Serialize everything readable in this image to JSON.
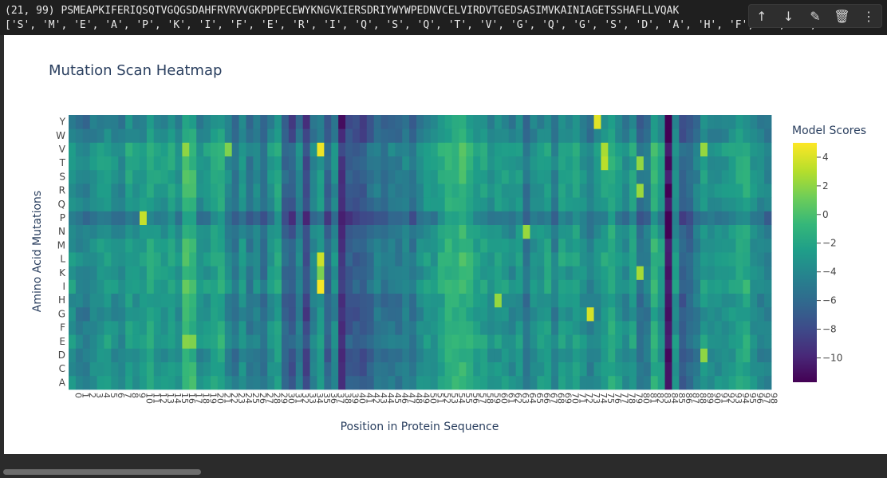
{
  "output_lines": {
    "line1": "(21, 99) PSMEAPKIFERIQSQTVGQGSDAHFRVRVVGKPDPECEWYKNGVKIERSDRIYWYWPEDNVCELVIRDVTGEDSASIMVKAINIAGETSSHAFLLVQAK",
    "line2": "['S', 'M', 'E', 'A', 'P', 'K', 'I', 'F', 'E', 'R', 'I', 'Q', 'S', 'Q', 'T', 'V', 'G', 'Q', 'G', 'S', 'D', 'A', 'H', 'F', 'R', 'V',"
  },
  "toolbar": {
    "buttons": [
      {
        "name": "move-up-icon",
        "glyph": "↑"
      },
      {
        "name": "move-down-icon",
        "glyph": "↓"
      },
      {
        "name": "magic-wand-icon",
        "glyph": "✎"
      },
      {
        "name": "delete-icon",
        "glyph": "🗑"
      },
      {
        "name": "more-options-icon",
        "glyph": "⋮"
      }
    ]
  },
  "chart_data": {
    "type": "heatmap",
    "title": "Mutation Scan Heatmap",
    "xlabel": "Position in Protein Sequence",
    "ylabel": "Amino Acid Mutations",
    "colorbar_title": "Model Scores",
    "colorscale": "viridis",
    "zmin": -11.7,
    "zmax": 5.0,
    "colorbar_ticks": [
      4,
      2,
      0,
      -2,
      -4,
      -6,
      -8,
      -10
    ],
    "y_categories": [
      "A",
      "C",
      "D",
      "E",
      "F",
      "G",
      "H",
      "I",
      "K",
      "L",
      "M",
      "N",
      "P",
      "Q",
      "R",
      "S",
      "T",
      "V",
      "W",
      "Y"
    ],
    "x_range": [
      0,
      98
    ],
    "x_ticks": [
      0,
      1,
      2,
      3,
      4,
      5,
      6,
      7,
      8,
      9,
      10,
      11,
      12,
      13,
      14,
      15,
      16,
      17,
      18,
      19,
      20,
      21,
      22,
      23,
      24,
      25,
      26,
      27,
      28,
      29,
      30,
      31,
      32,
      33,
      34,
      35,
      36,
      37,
      38,
      39,
      40,
      41,
      42,
      43,
      44,
      45,
      46,
      47,
      48,
      49,
      50,
      51,
      52,
      53,
      54,
      55,
      56,
      57,
      58,
      59,
      60,
      61,
      62,
      63,
      64,
      65,
      66,
      67,
      68,
      69,
      70,
      71,
      72,
      73,
      74,
      75,
      76,
      77,
      78,
      79,
      80,
      81,
      82,
      83,
      84,
      85,
      86,
      87,
      88,
      89,
      90,
      91,
      92,
      93,
      94,
      95,
      96,
      97,
      98
    ],
    "column_base": [
      -3.1,
      -4.2,
      -4.5,
      -3.6,
      -3.0,
      -2.8,
      -3.4,
      -4.0,
      -2.4,
      -3.0,
      -2.9,
      -1.8,
      -2.6,
      -3.0,
      -2.4,
      -3.3,
      -0.3,
      -0.8,
      -3.5,
      -3.1,
      -2.2,
      -1.6,
      -3.8,
      -5.3,
      -3.2,
      -5.2,
      -4.0,
      -5.7,
      -3.3,
      -2.0,
      -6.3,
      -7.0,
      -4.3,
      -8.0,
      -4.1,
      -2.9,
      -6.5,
      -3.8,
      -9.2,
      -6.8,
      -7.0,
      -7.0,
      -5.9,
      -4.8,
      -5.6,
      -4.9,
      -5.1,
      -4.2,
      -5.4,
      -3.6,
      -3.0,
      -3.2,
      -1.9,
      -0.9,
      -1.1,
      -0.6,
      -1.3,
      -2.3,
      -2.5,
      -3.3,
      -2.8,
      -2.9,
      -3.8,
      -2.9,
      -5.4,
      -3.4,
      -3.0,
      -2.5,
      -4.5,
      -2.3,
      -3.0,
      -2.2,
      -3.3,
      -4.5,
      -3.6,
      -2.4,
      -1.5,
      -2.8,
      -3.7,
      -2.4,
      -5.2,
      -4.5,
      -1.1,
      -2.7,
      -11.0,
      -3.2,
      -6.7,
      -6.1,
      -4.5,
      -2.8,
      -3.6,
      -3.4,
      -3.2,
      -2.5,
      -2.0,
      -1.6,
      -3.3,
      -4.0,
      -4.4
    ],
    "row_offsets": {
      "A": 0.0,
      "C": -0.3,
      "D": -0.5,
      "E": 0.3,
      "F": -0.2,
      "G": -0.6,
      "H": -0.4,
      "I": 0.4,
      "K": 0.0,
      "L": 0.3,
      "M": 0.0,
      "N": -0.3,
      "P": -1.8,
      "Q": -0.1,
      "R": 0.0,
      "S": 0.2,
      "T": 0.2,
      "V": 0.6,
      "W": -1.0,
      "Y": -1.2
    },
    "highlights": [
      {
        "x": 35,
        "y": "V",
        "z": 4.6
      },
      {
        "x": 35,
        "y": "I",
        "z": 4.8
      },
      {
        "x": 35,
        "y": "L",
        "z": 3.6
      },
      {
        "x": 35,
        "y": "K",
        "z": 1.5
      },
      {
        "x": 10,
        "y": "P",
        "z": 3.4
      },
      {
        "x": 74,
        "y": "Y",
        "z": 4.2
      },
      {
        "x": 75,
        "y": "V",
        "z": 2.7
      },
      {
        "x": 75,
        "y": "T",
        "z": 3.2
      },
      {
        "x": 73,
        "y": "G",
        "z": 3.9
      },
      {
        "x": 80,
        "y": "K",
        "z": 2.6
      },
      {
        "x": 80,
        "y": "R",
        "z": 2.3
      },
      {
        "x": 80,
        "y": "T",
        "z": 2.1
      },
      {
        "x": 64,
        "y": "N",
        "z": 2.3
      },
      {
        "x": 60,
        "y": "H",
        "z": 2.2
      },
      {
        "x": 89,
        "y": "V",
        "z": 2.2
      },
      {
        "x": 89,
        "y": "D",
        "z": 2.0
      },
      {
        "x": 22,
        "y": "V",
        "z": 1.6
      },
      {
        "x": 16,
        "y": "V",
        "z": 2.0
      },
      {
        "x": 16,
        "y": "E",
        "z": 1.8
      },
      {
        "x": 17,
        "y": "E",
        "z": 1.6
      }
    ]
  }
}
